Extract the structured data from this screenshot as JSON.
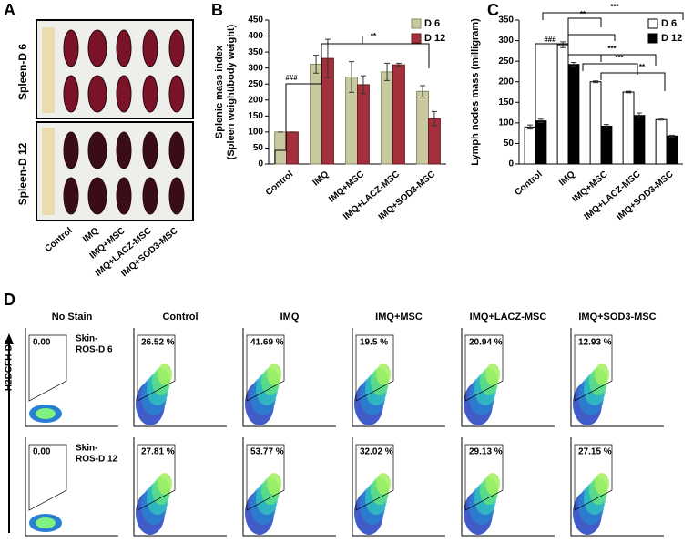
{
  "panels_a": {
    "label": "A",
    "row_labels": [
      "Spleen-D 6",
      "Spleen-D 12"
    ],
    "categories": [
      "Control",
      "IMQ",
      "IMQ+MSC",
      "IMQ+LACZ-MSC",
      "IMQ+SOD3-MSC"
    ]
  },
  "chart_data": [
    {
      "type": "bar",
      "label": "B",
      "y_label": [
        "Splenic mass index",
        "(Spleen weight/body weight)"
      ],
      "categories": [
        "Control",
        "IMQ",
        "IMQ+MSC",
        "IMQ+LACZ-MSC",
        "IMQ+SOD3-MSC"
      ],
      "series": [
        {
          "name": "D 6",
          "color": "#c9c99f",
          "edgecolor": "#8a8a6a",
          "values": [
            100,
            312,
            272,
            288,
            227
          ],
          "errors": [
            0,
            28,
            48,
            27,
            18
          ]
        },
        {
          "name": "D 12",
          "color": "#a3303c",
          "edgecolor": "#6a1a22",
          "values": [
            100,
            330,
            248,
            310,
            142
          ],
          "errors": [
            0,
            60,
            28,
            5,
            22
          ]
        }
      ],
      "ylim": [
        0,
        450
      ],
      "yticks": [
        0,
        50,
        100,
        150,
        200,
        250,
        300,
        350,
        400,
        450
      ],
      "legend": "upper right",
      "annotations": [
        "###",
        "**"
      ]
    },
    {
      "type": "bar",
      "label": "C",
      "y_label": [
        "Lymph nodes mass (milligram)"
      ],
      "categories": [
        "Control",
        "IMQ",
        "IMQ+MSC",
        "IMQ+LACZ-MSC",
        "IMQ+SOD3-MSC"
      ],
      "series": [
        {
          "name": "D 6",
          "color": "#ffffff",
          "edgecolor": "#000000",
          "values": [
            90,
            290,
            200,
            175,
            108
          ],
          "errors": [
            5,
            7,
            2,
            2,
            1
          ]
        },
        {
          "name": "D 12",
          "color": "#000000",
          "edgecolor": "#000000",
          "values": [
            105,
            242,
            92,
            118,
            68
          ],
          "errors": [
            4,
            5,
            4,
            6,
            2
          ]
        }
      ],
      "ylim": [
        0,
        350
      ],
      "yticks": [
        0,
        50,
        100,
        150,
        200,
        250,
        300,
        350
      ],
      "legend": "upper right",
      "annotations": [
        "###",
        "**",
        "***",
        "***",
        "**",
        "***"
      ]
    }
  ],
  "panel_d": {
    "label": "D",
    "y_label": "H2DCFH-DA",
    "columns": [
      "No Stain",
      "Control",
      "IMQ",
      "IMQ+MSC",
      "IMQ+LACZ-MSC",
      "IMQ+SOD3-MSC"
    ],
    "rows": [
      {
        "label": [
          "Skin-",
          "ROS-D 6"
        ],
        "percents": [
          "0.00",
          "26.52 %",
          "41.69 %",
          "19.5 %",
          "20.94 %",
          "12.93 %"
        ]
      },
      {
        "label": [
          "Skin-",
          "ROS-D 12"
        ],
        "percents": [
          "0.00",
          "27.81 %",
          "53.77 %",
          "32.02 %",
          "29.13 %",
          "27.15 %"
        ]
      }
    ]
  }
}
